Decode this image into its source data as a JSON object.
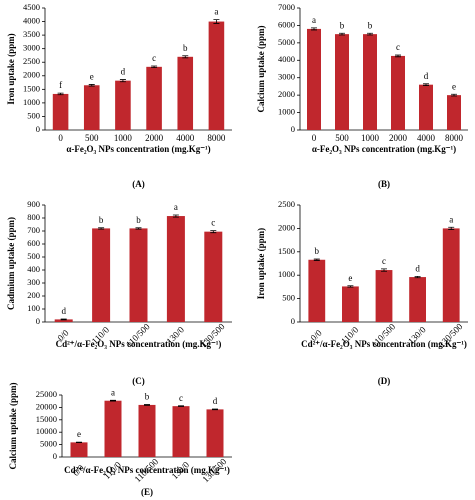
{
  "chart_data": [
    {
      "type": "bar",
      "panel_label": "(A)",
      "y_label": "Iron uptake (ppm)",
      "x_label": "α-Fe₂O₃ NPs concentration (mg.Kg⁻¹)",
      "categories": [
        "0",
        "500",
        "1000",
        "2000",
        "4000",
        "8000"
      ],
      "values": [
        1330,
        1650,
        1820,
        2330,
        2700,
        4000
      ],
      "errors": [
        30,
        30,
        40,
        30,
        40,
        70
      ],
      "letters": [
        "f",
        "e",
        "d",
        "c",
        "b",
        "a"
      ],
      "color": "#c0272d",
      "ylim": [
        0,
        4500
      ],
      "yticks": [
        0,
        500,
        1000,
        1500,
        2000,
        2500,
        3000,
        3500,
        4000,
        4500
      ]
    },
    {
      "type": "bar",
      "panel_label": "(B)",
      "y_label": "Calcium uptake (ppm)",
      "x_label": "α-Fe₂O₃ NPs concentration (mg.Kg⁻¹)",
      "categories": [
        "0",
        "500",
        "1000",
        "2000",
        "4000",
        "8000"
      ],
      "values": [
        5800,
        5500,
        5500,
        4250,
        2600,
        2000
      ],
      "errors": [
        60,
        50,
        50,
        50,
        50,
        50
      ],
      "letters": [
        "a",
        "b",
        "b",
        "c",
        "d",
        "e"
      ],
      "color": "#c0272d",
      "ylim": [
        0,
        7000
      ],
      "yticks": [
        0,
        1000,
        2000,
        3000,
        4000,
        5000,
        6000,
        7000
      ]
    },
    {
      "type": "bar",
      "panel_label": "(C)",
      "y_label": "Cadmium uptake (ppm)",
      "x_label": "Cd²⁺/α-Fe₂O₃ NPs concentration (mg.Kg⁻¹)",
      "categories": [
        "0/0",
        "110/0",
        "110/500",
        "130/0",
        "130/500"
      ],
      "values": [
        20,
        720,
        720,
        815,
        695
      ],
      "errors": [
        3,
        5,
        5,
        8,
        8
      ],
      "letters": [
        "d",
        "b",
        "b",
        "a",
        "c"
      ],
      "color": "#c0272d",
      "ylim": [
        0,
        900
      ],
      "yticks": [
        0,
        100,
        200,
        300,
        400,
        500,
        600,
        700,
        800,
        900
      ]
    },
    {
      "type": "bar",
      "panel_label": "(D)",
      "y_label": "Iron uptake (ppm)",
      "x_label": "Cd²⁺/α-Fe₂O₃ NPs concentration (mg.Kg⁻¹)",
      "categories": [
        "0/0",
        "110/0",
        "110/500",
        "130/0",
        "130/500"
      ],
      "values": [
        1330,
        760,
        1110,
        960,
        2000
      ],
      "errors": [
        15,
        15,
        25,
        15,
        25
      ],
      "letters": [
        "b",
        "e",
        "c",
        "d",
        "a"
      ],
      "color": "#c0272d",
      "ylim": [
        0,
        2500
      ],
      "yticks": [
        0,
        500,
        1000,
        1500,
        2000,
        2500
      ]
    },
    {
      "type": "bar",
      "panel_label": "(E)",
      "y_label": "Calcium uptake (ppm)",
      "x_label": "Cd²⁺/α-Fe₂O₃ NPs concentration (mg.Kg⁻¹)",
      "categories": [
        "0/0",
        "110/0",
        "110/500",
        "130/0",
        "130/500"
      ],
      "values": [
        5900,
        22700,
        21000,
        20500,
        19200
      ],
      "errors": [
        100,
        150,
        150,
        150,
        150
      ],
      "letters": [
        "e",
        "a",
        "b",
        "c",
        "d"
      ],
      "color": "#c0272d",
      "ylim": [
        0,
        25000
      ],
      "yticks": [
        0,
        5000,
        10000,
        15000,
        20000,
        25000
      ]
    }
  ]
}
